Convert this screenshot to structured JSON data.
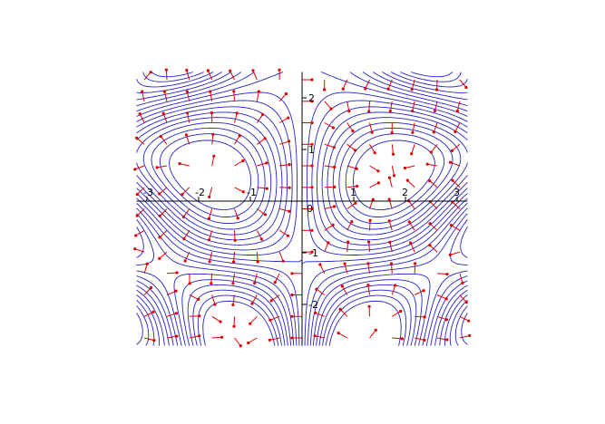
{
  "chart_data": {
    "type": "contour",
    "description_free": true,
    "xlim": [
      -3.2,
      3.2
    ],
    "ylim": [
      -2.8,
      2.5
    ],
    "xticks": [
      -3,
      -2,
      -1,
      1,
      2,
      3
    ],
    "yticks": [
      -2,
      -1,
      1,
      2
    ],
    "xtick_labels": [
      "-3",
      "-2",
      "-1",
      "1",
      "2",
      "3"
    ],
    "ytick_labels": [
      "-2",
      "-1",
      "1",
      "2"
    ],
    "origin_label": "0",
    "contour_levels": [
      -0.9,
      -0.8,
      -0.7,
      -0.6,
      -0.5,
      -0.4,
      -0.3,
      -0.2,
      -0.1,
      0.0,
      0.1,
      0.2,
      0.3,
      0.4,
      0.5,
      0.6,
      0.7,
      0.8,
      0.9
    ],
    "field_grid": {
      "nx": 15,
      "ny": 13
    },
    "colors": {
      "contour": "#2323c8",
      "field": "#e00000",
      "axes": "#000000"
    }
  }
}
